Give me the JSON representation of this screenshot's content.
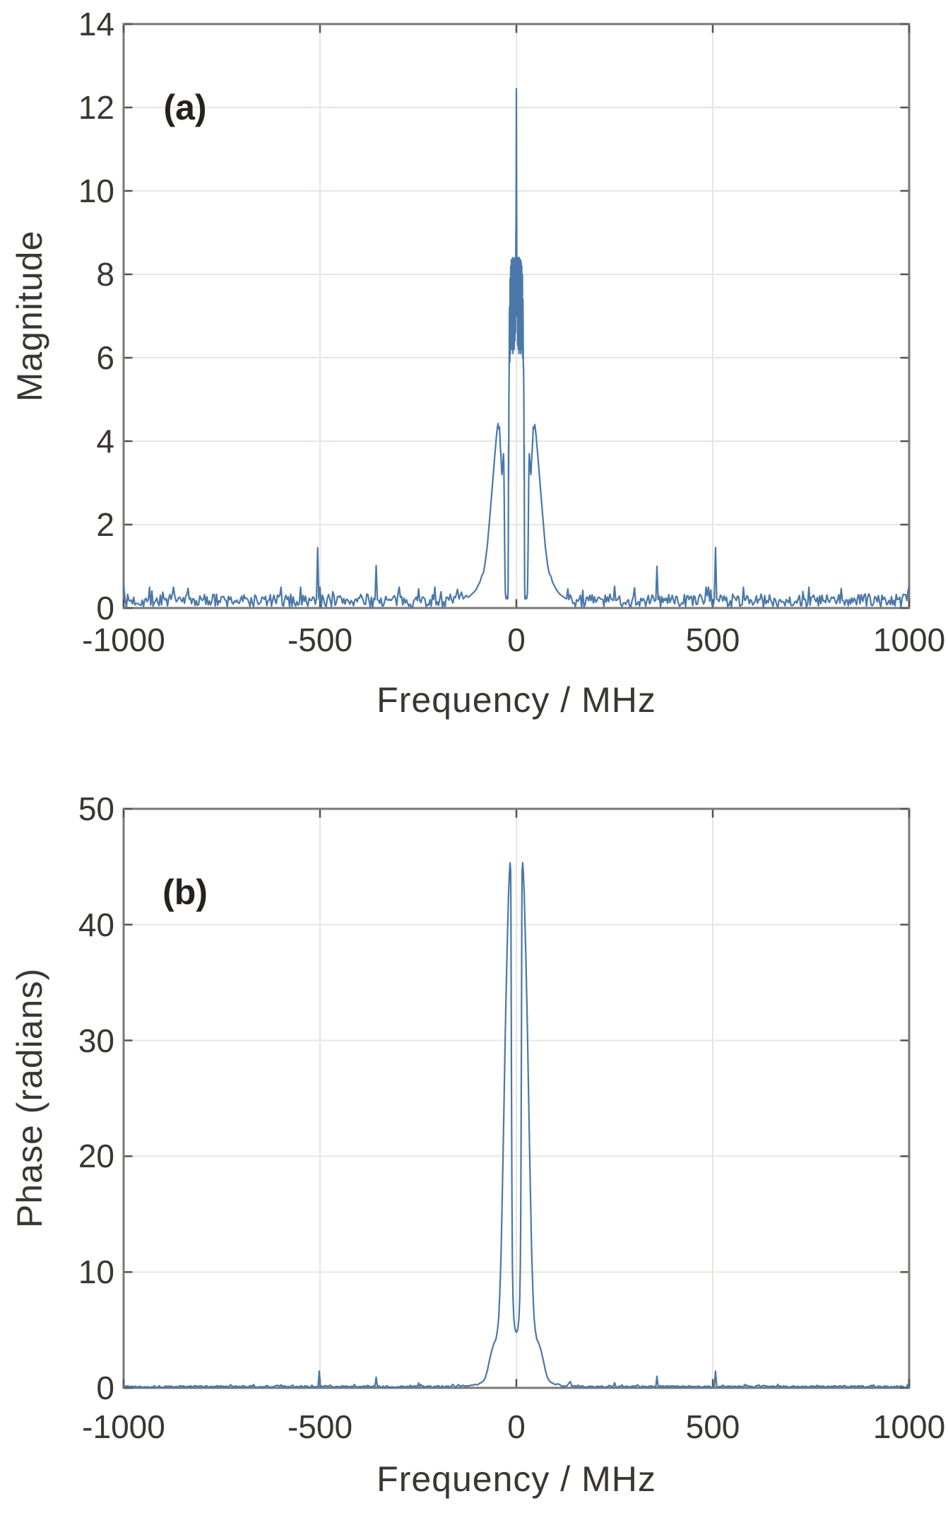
{
  "figure": {
    "background": "#ffffff",
    "line_color": "#4a78a8",
    "grid_color": "#e8e5e1",
    "border_color": "#7b7874",
    "tick_color": "#55524e",
    "text_color": "#3a3632",
    "annotation_color": "#25211e"
  },
  "chart_data": [
    {
      "id": "magnitude-spectrum",
      "type": "line",
      "annotation": "(a)",
      "xlabel": "Frequency / MHz",
      "ylabel": "Magnitude",
      "xlim": [
        -1000,
        1000
      ],
      "ylim": [
        0,
        14
      ],
      "xticks": [
        -1000,
        -500,
        0,
        500,
        1000
      ],
      "xtick_labels": [
        "-1000",
        "-500",
        "0",
        "500",
        "1000"
      ],
      "yticks": [
        0,
        2,
        4,
        6,
        8,
        10,
        12,
        14
      ],
      "ytick_labels": [
        "0",
        "2",
        "4",
        "6",
        "8",
        "10",
        "12",
        "14"
      ],
      "grid_x": [
        -500,
        0,
        500
      ],
      "grid": true,
      "legend": null,
      "noise_floor": 0.15,
      "noise_amplitude": 0.16,
      "points": [
        [
          -1000,
          0.55
        ],
        [
          -996,
          0.2
        ],
        [
          -940,
          0.15
        ],
        [
          -870,
          0.3
        ],
        [
          -866,
          0.15
        ],
        [
          -800,
          0.18
        ],
        [
          -730,
          0.2
        ],
        [
          -660,
          0.17
        ],
        [
          -590,
          0.22
        ],
        [
          -540,
          0.16
        ],
        [
          -509,
          0.22
        ],
        [
          -506,
          1.45
        ],
        [
          -503,
          0.22
        ],
        [
          -478,
          0.32
        ],
        [
          -474,
          0.18
        ],
        [
          -430,
          0.2
        ],
        [
          -390,
          0.18
        ],
        [
          -360,
          0.2
        ],
        [
          -357,
          1.02
        ],
        [
          -354,
          0.2
        ],
        [
          -320,
          0.18
        ],
        [
          -280,
          0.2
        ],
        [
          -252,
          0.18
        ],
        [
          -249,
          0.46
        ],
        [
          -246,
          0.18
        ],
        [
          -220,
          0.2
        ],
        [
          -195,
          0.22
        ],
        [
          -175,
          0.25
        ],
        [
          -165,
          0.2
        ],
        [
          -155,
          0.25
        ],
        [
          -150,
          0.45
        ],
        [
          -146,
          0.22
        ],
        [
          -140,
          0.38
        ],
        [
          -135,
          0.22
        ],
        [
          -128,
          0.3
        ],
        [
          -122,
          0.26
        ],
        [
          -115,
          0.32
        ],
        [
          -108,
          0.38
        ],
        [
          -102,
          0.45
        ],
        [
          -97,
          0.55
        ],
        [
          -92,
          0.64
        ],
        [
          -88,
          0.78
        ],
        [
          -84,
          0.84
        ],
        [
          -80,
          1.05
        ],
        [
          -74,
          1.5
        ],
        [
          -68,
          2.15
        ],
        [
          -61,
          2.95
        ],
        [
          -55,
          3.65
        ],
        [
          -50,
          4.2
        ],
        [
          -47,
          4.42
        ],
        [
          -45,
          4.3
        ],
        [
          -43,
          4.34
        ],
        [
          -41,
          3.9
        ],
        [
          -39,
          3.6
        ],
        [
          -37,
          3.2
        ],
        [
          -35,
          3.35
        ],
        [
          -33,
          3.7
        ],
        [
          -32,
          3.45
        ],
        [
          -31,
          2.6
        ],
        [
          -30,
          1.6
        ],
        [
          -29,
          0.8
        ],
        [
          -28,
          0.35
        ],
        [
          -26,
          0.22
        ],
        [
          -24,
          0.28
        ],
        [
          -22,
          0.22
        ],
        [
          -21,
          0.5
        ],
        [
          -20.4,
          2.2
        ],
        [
          -20,
          3.9
        ],
        [
          -19.7,
          3.1
        ],
        [
          -19.4,
          3.95
        ],
        [
          -19,
          5.0
        ],
        [
          -18.4,
          5.75
        ],
        [
          -17.6,
          7.2
        ],
        [
          -16.8,
          5.9
        ],
        [
          -16,
          7.9
        ],
        [
          -15.2,
          6.1
        ],
        [
          -14.4,
          8.2
        ],
        [
          -13.6,
          6.3
        ],
        [
          -12.8,
          8.35
        ],
        [
          -12,
          6.2
        ],
        [
          -11.2,
          8.3
        ],
        [
          -10.4,
          6.4
        ],
        [
          -9.6,
          8.4
        ],
        [
          -8.8,
          6.1
        ],
        [
          -8,
          8.3
        ],
        [
          -7.2,
          6.3
        ],
        [
          -6.4,
          8.38
        ],
        [
          -5.6,
          6.2
        ],
        [
          -4.8,
          8.3
        ],
        [
          -4,
          6.4
        ],
        [
          -3.2,
          8.4
        ],
        [
          -2.4,
          6.6
        ],
        [
          -1.6,
          8.3
        ],
        [
          -0.8,
          9.6
        ],
        [
          0,
          12.45
        ],
        [
          0.8,
          9.4
        ],
        [
          1.6,
          7.0
        ],
        [
          2.4,
          8.35
        ],
        [
          3.2,
          6.3
        ],
        [
          4,
          8.4
        ],
        [
          4.8,
          6.2
        ],
        [
          5.6,
          8.35
        ],
        [
          6.4,
          6.1
        ],
        [
          7.2,
          8.4
        ],
        [
          8,
          6.2
        ],
        [
          8.8,
          8.3
        ],
        [
          9.6,
          6.4
        ],
        [
          10.4,
          8.35
        ],
        [
          11.2,
          6.1
        ],
        [
          12,
          8.3
        ],
        [
          12.8,
          6.3
        ],
        [
          13.6,
          8.2
        ],
        [
          14.4,
          6.2
        ],
        [
          15.2,
          8.0
        ],
        [
          16,
          6.0
        ],
        [
          16.8,
          7.4
        ],
        [
          17.6,
          5.8
        ],
        [
          18.4,
          5.75
        ],
        [
          19,
          5.0
        ],
        [
          19.4,
          3.95
        ],
        [
          19.7,
          3.1
        ],
        [
          20,
          3.9
        ],
        [
          20.4,
          2.2
        ],
        [
          21,
          0.5
        ],
        [
          22,
          0.22
        ],
        [
          24,
          0.28
        ],
        [
          26,
          0.22
        ],
        [
          28,
          0.35
        ],
        [
          29,
          0.8
        ],
        [
          30,
          1.6
        ],
        [
          31,
          2.6
        ],
        [
          32,
          3.45
        ],
        [
          33,
          3.7
        ],
        [
          35,
          3.35
        ],
        [
          37,
          3.2
        ],
        [
          39,
          3.6
        ],
        [
          41,
          3.9
        ],
        [
          43,
          4.34
        ],
        [
          45,
          4.3
        ],
        [
          47,
          4.4
        ],
        [
          50,
          4.15
        ],
        [
          55,
          3.6
        ],
        [
          61,
          2.9
        ],
        [
          68,
          2.1
        ],
        [
          74,
          1.45
        ],
        [
          80,
          1.0
        ],
        [
          84,
          0.82
        ],
        [
          88,
          0.76
        ],
        [
          92,
          0.62
        ],
        [
          97,
          0.53
        ],
        [
          102,
          0.44
        ],
        [
          108,
          0.36
        ],
        [
          115,
          0.3
        ],
        [
          122,
          0.25
        ],
        [
          128,
          0.22
        ],
        [
          131,
          0.46
        ],
        [
          134,
          0.2
        ],
        [
          160,
          0.22
        ],
        [
          190,
          0.18
        ],
        [
          220,
          0.2
        ],
        [
          247,
          0.18
        ],
        [
          250,
          0.52
        ],
        [
          253,
          0.18
        ],
        [
          285,
          0.2
        ],
        [
          320,
          0.17
        ],
        [
          355,
          0.2
        ],
        [
          358,
          1.0
        ],
        [
          361,
          0.2
        ],
        [
          400,
          0.18
        ],
        [
          440,
          0.2
        ],
        [
          470,
          0.3
        ],
        [
          474,
          0.18
        ],
        [
          504,
          0.22
        ],
        [
          507,
          1.45
        ],
        [
          510,
          0.22
        ],
        [
          560,
          0.18
        ],
        [
          620,
          0.2
        ],
        [
          690,
          0.17
        ],
        [
          760,
          0.2
        ],
        [
          830,
          0.18
        ],
        [
          878,
          0.32
        ],
        [
          882,
          0.16
        ],
        [
          940,
          0.2
        ],
        [
          994,
          0.18
        ],
        [
          997,
          0.4
        ],
        [
          1000,
          0.52
        ]
      ]
    },
    {
      "id": "phase-spectrum",
      "type": "line",
      "annotation": "(b)",
      "xlabel": "Frequency / MHz",
      "ylabel": "Phase (radians)",
      "xlim": [
        -1000,
        1000
      ],
      "ylim": [
        0,
        50
      ],
      "xticks": [
        -1000,
        -500,
        0,
        500,
        1000
      ],
      "xtick_labels": [
        "-1000",
        "-500",
        "0",
        "500",
        "1000"
      ],
      "yticks": [
        0,
        10,
        20,
        30,
        40,
        50
      ],
      "ytick_labels": [
        "0",
        "10",
        "20",
        "30",
        "40",
        "50"
      ],
      "grid_x": [
        -500,
        0,
        500
      ],
      "grid": true,
      "legend": null,
      "noise_floor": 0.1,
      "noise_amplitude": 0.08,
      "points": [
        [
          -1000,
          0.3
        ],
        [
          -997,
          0.12
        ],
        [
          -940,
          0.1
        ],
        [
          -860,
          0.12
        ],
        [
          -780,
          0.1
        ],
        [
          -700,
          0.12
        ],
        [
          -620,
          0.1
        ],
        [
          -560,
          0.12
        ],
        [
          -505,
          0.12
        ],
        [
          -502,
          1.45
        ],
        [
          -499,
          0.12
        ],
        [
          -450,
          0.1
        ],
        [
          -400,
          0.12
        ],
        [
          -360,
          0.12
        ],
        [
          -357,
          0.92
        ],
        [
          -354,
          0.12
        ],
        [
          -300,
          0.1
        ],
        [
          -252,
          0.12
        ],
        [
          -249,
          0.42
        ],
        [
          -246,
          0.12
        ],
        [
          -210,
          0.12
        ],
        [
          -180,
          0.15
        ],
        [
          -162,
          0.3
        ],
        [
          -158,
          0.14
        ],
        [
          -148,
          0.28
        ],
        [
          -143,
          0.14
        ],
        [
          -136,
          0.22
        ],
        [
          -128,
          0.15
        ],
        [
          -120,
          0.18
        ],
        [
          -112,
          0.22
        ],
        [
          -105,
          0.3
        ],
        [
          -99,
          0.26
        ],
        [
          -94,
          0.38
        ],
        [
          -89,
          0.46
        ],
        [
          -84,
          0.6
        ],
        [
          -79,
          0.9
        ],
        [
          -74,
          1.5
        ],
        [
          -69,
          2.3
        ],
        [
          -63,
          3.2
        ],
        [
          -57,
          3.85
        ],
        [
          -52,
          4.2
        ],
        [
          -48,
          5.0
        ],
        [
          -45,
          6.1
        ],
        [
          -42,
          8.3
        ],
        [
          -39,
          11.5
        ],
        [
          -36,
          16.5
        ],
        [
          -32,
          23.5
        ],
        [
          -28,
          31
        ],
        [
          -24,
          37.5
        ],
        [
          -20,
          42.6
        ],
        [
          -17.5,
          44.7
        ],
        [
          -16,
          45.35
        ],
        [
          -14.6,
          44.6
        ],
        [
          -13.9,
          41
        ],
        [
          -13.3,
          35
        ],
        [
          -12.8,
          29
        ],
        [
          -12.3,
          24
        ],
        [
          -11.7,
          19
        ],
        [
          -11,
          14.5
        ],
        [
          -10,
          10.5
        ],
        [
          -8.5,
          7.6
        ],
        [
          -6.5,
          6.0
        ],
        [
          -4.5,
          5.3
        ],
        [
          -2.5,
          4.95
        ],
        [
          0,
          4.8
        ],
        [
          2.5,
          4.95
        ],
        [
          4.5,
          5.3
        ],
        [
          6.5,
          6.0
        ],
        [
          8.5,
          7.6
        ],
        [
          10,
          10.5
        ],
        [
          11,
          14.5
        ],
        [
          11.7,
          19
        ],
        [
          12.3,
          24
        ],
        [
          12.8,
          29
        ],
        [
          13.3,
          35
        ],
        [
          13.9,
          41
        ],
        [
          14.6,
          44.6
        ],
        [
          16,
          45.35
        ],
        [
          17.5,
          44.7
        ],
        [
          20,
          42.6
        ],
        [
          24,
          37.5
        ],
        [
          28,
          31
        ],
        [
          32,
          23.5
        ],
        [
          36,
          16.5
        ],
        [
          39,
          11.5
        ],
        [
          42,
          8.3
        ],
        [
          45,
          6.1
        ],
        [
          48,
          5.0
        ],
        [
          52,
          4.2
        ],
        [
          57,
          3.85
        ],
        [
          63,
          3.2
        ],
        [
          69,
          2.3
        ],
        [
          74,
          1.5
        ],
        [
          79,
          0.9
        ],
        [
          84,
          0.6
        ],
        [
          89,
          0.46
        ],
        [
          94,
          0.38
        ],
        [
          99,
          0.28
        ],
        [
          105,
          0.35
        ],
        [
          112,
          0.25
        ],
        [
          120,
          0.18
        ],
        [
          128,
          0.15
        ],
        [
          137,
          0.55
        ],
        [
          141,
          0.15
        ],
        [
          160,
          0.12
        ],
        [
          190,
          0.12
        ],
        [
          220,
          0.12
        ],
        [
          247,
          0.12
        ],
        [
          250,
          0.45
        ],
        [
          253,
          0.12
        ],
        [
          290,
          0.1
        ],
        [
          330,
          0.12
        ],
        [
          355,
          0.12
        ],
        [
          358,
          1.0
        ],
        [
          361,
          0.12
        ],
        [
          400,
          0.1
        ],
        [
          450,
          0.12
        ],
        [
          504,
          0.12
        ],
        [
          507,
          1.45
        ],
        [
          510,
          0.12
        ],
        [
          560,
          0.1
        ],
        [
          620,
          0.12
        ],
        [
          690,
          0.1
        ],
        [
          760,
          0.12
        ],
        [
          830,
          0.1
        ],
        [
          900,
          0.12
        ],
        [
          960,
          0.1
        ],
        [
          997,
          0.3
        ],
        [
          1000,
          0.45
        ]
      ]
    }
  ]
}
